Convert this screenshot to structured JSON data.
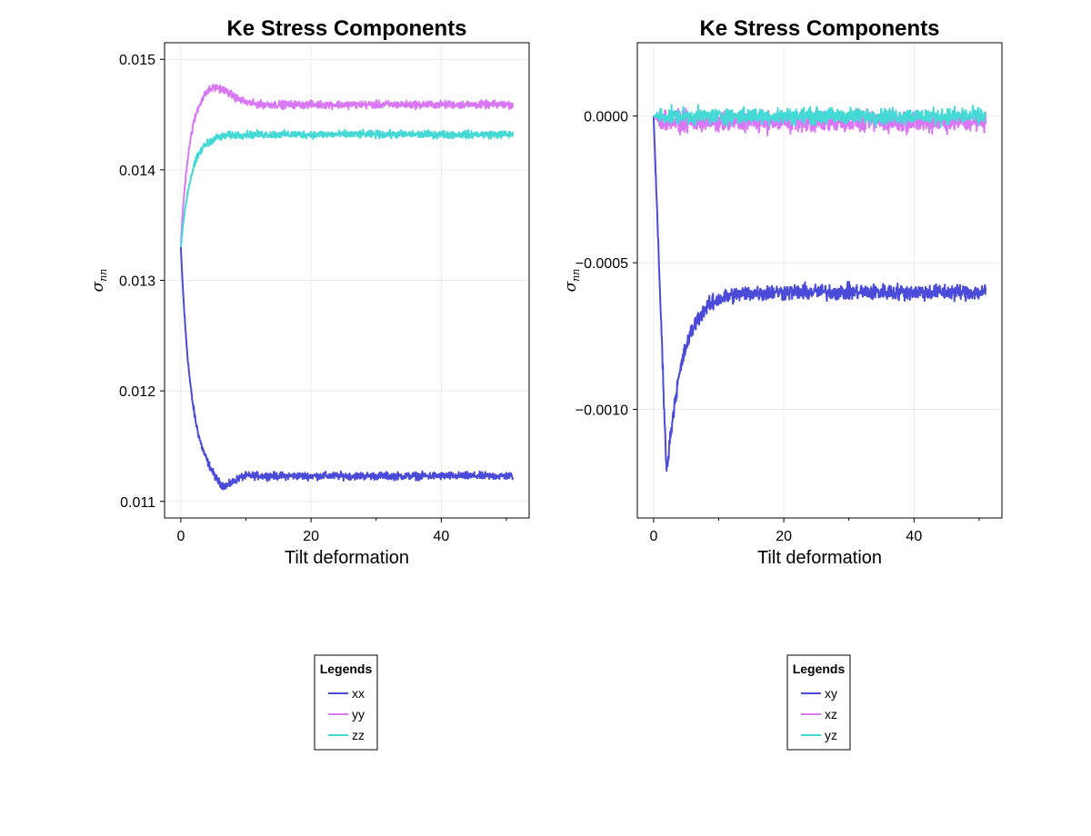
{
  "chart_data": [
    {
      "type": "line",
      "title": "Ke Stress Components",
      "xlabel": "Tilt deformation",
      "ylabel": "σ",
      "ylabel_sub": "nn",
      "xlim": [
        -2.5,
        53.5
      ],
      "ylim": [
        0.01085,
        0.01515
      ],
      "xticks": [
        0,
        20,
        40
      ],
      "xtick_labels": [
        "0",
        "20",
        "40"
      ],
      "yticks": [
        0.011,
        0.012,
        0.013,
        0.014,
        0.015
      ],
      "ytick_labels": [
        "0.011",
        "0.012",
        "0.013",
        "0.014",
        "0.015"
      ],
      "grid": true,
      "legend": {
        "title": "Legends",
        "placement": "below"
      },
      "series": [
        {
          "name": "xx",
          "color": "#4b4bd9",
          "x_range": [
            0,
            51
          ],
          "n_points": 1000,
          "start": 0.0133,
          "final": 0.01123,
          "tau": 1.6,
          "noise": 5e-05,
          "overshoot": {
            "amp": -0.00012,
            "peak": 6.5,
            "width": 2.0
          }
        },
        {
          "name": "yy",
          "color": "#d977f5",
          "x_range": [
            0,
            51
          ],
          "n_points": 1000,
          "start": 0.0133,
          "final": 0.01459,
          "tau": 1.2,
          "noise": 5e-05,
          "overshoot": {
            "amp": 0.00017,
            "peak": 5.0,
            "width": 3.5
          }
        },
        {
          "name": "zz",
          "color": "#45d9d6",
          "x_range": [
            0,
            51
          ],
          "n_points": 1000,
          "start": 0.0133,
          "final": 0.01432,
          "tau": 1.6,
          "noise": 5e-05,
          "overshoot": {
            "amp": 0,
            "peak": 0,
            "width": 1
          }
        }
      ]
    },
    {
      "type": "line",
      "title": "Ke Stress Components",
      "xlabel": "Tilt deformation",
      "ylabel": "σ",
      "ylabel_sub": "nn",
      "xlim": [
        -2.5,
        53.5
      ],
      "ylim": [
        -0.00137,
        0.00025
      ],
      "xticks": [
        0,
        20,
        40
      ],
      "xtick_labels": [
        "0",
        "20",
        "40"
      ],
      "yticks": [
        -0.001,
        -0.0005,
        0.0
      ],
      "ytick_labels": [
        "−0.0010",
        "−0.0005",
        "0.0000"
      ],
      "grid": true,
      "legend": {
        "title": "Legends",
        "placement": "below"
      },
      "series": [
        {
          "name": "xy",
          "color": "#4b4bd9",
          "x_range": [
            0,
            51
          ],
          "n_points": 1000,
          "dip": {
            "x": 2.0,
            "y": -0.00122
          },
          "final": -0.0006,
          "tau": 2.5,
          "noise": 4e-05
        },
        {
          "name": "xz",
          "color": "#d977f5",
          "x_range": [
            0,
            51
          ],
          "n_points": 1000,
          "start": 0.0,
          "final": -2e-05,
          "tau": 1,
          "noise": 5e-05,
          "overshoot": {
            "amp": 0,
            "peak": 0,
            "width": 1
          }
        },
        {
          "name": "yz",
          "color": "#45d9d6",
          "x_range": [
            0,
            51
          ],
          "n_points": 1000,
          "start": 0.0,
          "final": 0.0,
          "tau": 1,
          "noise": 4e-05,
          "overshoot": {
            "amp": 0,
            "peak": 0,
            "width": 1
          }
        }
      ]
    }
  ]
}
